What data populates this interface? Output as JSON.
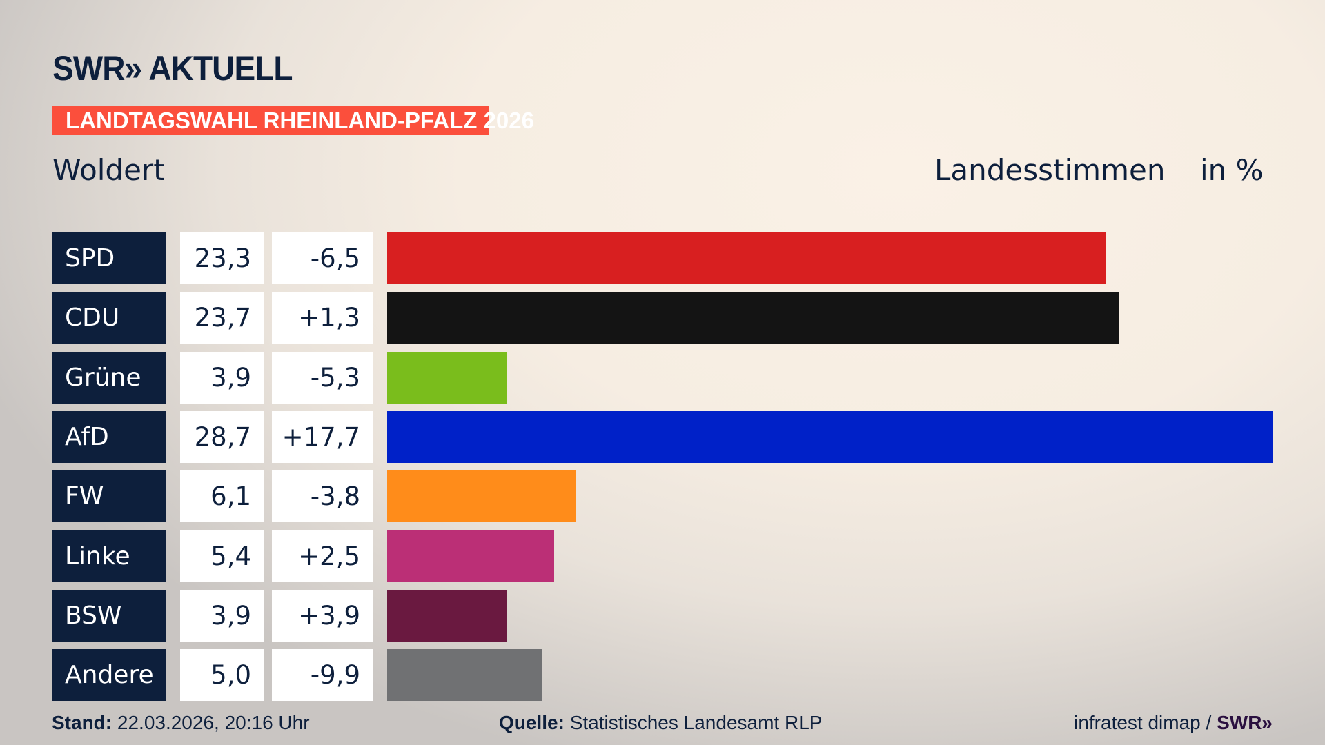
{
  "header": {
    "logo": "SWR» AKTUELL",
    "banner": "LANDTAGSWAHL RHEINLAND-PFALZ 2026",
    "place": "Woldert",
    "metric": "Landesstimmen",
    "unit": "in %"
  },
  "chart_data": {
    "type": "bar",
    "orientation": "horizontal",
    "categories": [
      "SPD",
      "CDU",
      "Grüne",
      "AfD",
      "FW",
      "Linke",
      "BSW",
      "Andere"
    ],
    "values": [
      23.3,
      23.7,
      3.9,
      28.7,
      6.1,
      5.4,
      3.9,
      5.0
    ],
    "value_labels": [
      "23,3",
      "23,7",
      "3,9",
      "28,7",
      "6,1",
      "5,4",
      "3,9",
      "5,0"
    ],
    "diff_labels": [
      "-6,5",
      "+1,3",
      "-5,3",
      "+17,7",
      "-3,8",
      "+2,5",
      "+3,9",
      "-9,9"
    ],
    "colors": [
      "#d81f20",
      "#141414",
      "#7abd1c",
      "#0021c8",
      "#ff8c1a",
      "#bb2f76",
      "#6a1940",
      "#707173"
    ],
    "xlim": [
      0,
      28.7
    ]
  },
  "footer": {
    "stand_label": "Stand:",
    "stand_value": "22.03.2026, 20:16 Uhr",
    "source_label": "Quelle:",
    "source_value": "Statistisches Landesamt RLP",
    "credit": "infratest dimap /",
    "credit_logo": "SWR»"
  }
}
